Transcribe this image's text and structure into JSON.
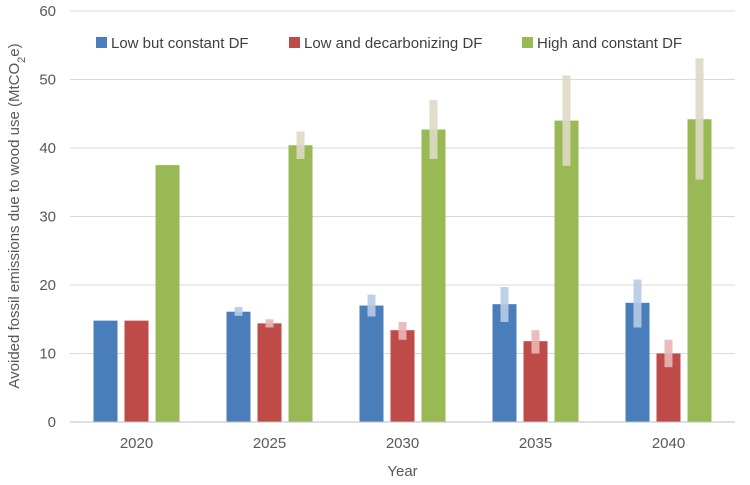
{
  "chart_data": {
    "type": "bar",
    "xlabel": "Year",
    "ylabel": "Avoided fossil emissions due to wood use (MtCO₂e)",
    "ylim": [
      0,
      60
    ],
    "yticks": [
      0,
      10,
      20,
      30,
      40,
      50,
      60
    ],
    "grid": "horizontal",
    "legend_position": "top",
    "categories": [
      "2020",
      "2025",
      "2030",
      "2035",
      "2040"
    ],
    "series": [
      {
        "name": "Low but constant DF",
        "color": "#4a7ebb",
        "range_color": "#b7cbe6",
        "values": [
          14.8,
          16.1,
          17.0,
          17.2,
          17.4
        ],
        "ranges": [
          null,
          [
            15.5,
            16.8
          ],
          [
            15.4,
            18.6
          ],
          [
            14.6,
            19.7
          ],
          [
            13.8,
            20.8
          ]
        ]
      },
      {
        "name": "Low and decarbonizing DF",
        "color": "#be4b48",
        "range_color": "#e8b6b5",
        "values": [
          14.8,
          14.4,
          13.4,
          11.8,
          10.0
        ],
        "ranges": [
          null,
          [
            13.8,
            15.0
          ],
          [
            12.0,
            14.6
          ],
          [
            10.0,
            13.4
          ],
          [
            8.0,
            12.0
          ]
        ]
      },
      {
        "name": "High and constant DF",
        "color": "#98b954",
        "range_color": "#ddd9c4",
        "values": [
          37.5,
          40.4,
          42.7,
          44.0,
          44.2
        ],
        "ranges": [
          null,
          [
            38.4,
            42.4
          ],
          [
            38.4,
            47.0
          ],
          [
            37.4,
            50.6
          ],
          [
            35.4,
            53.1
          ]
        ]
      }
    ]
  }
}
